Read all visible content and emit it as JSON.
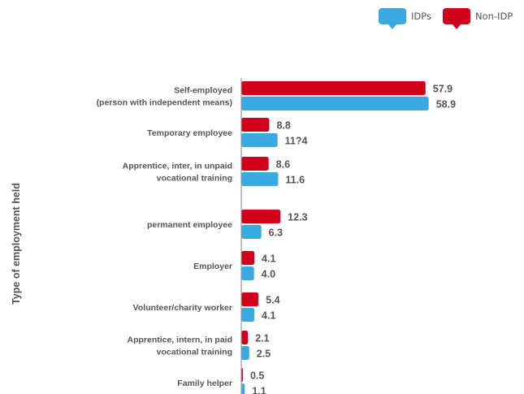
{
  "legend": {
    "idp_label": "IDPs",
    "non_idp_label": "Non-IDP"
  },
  "colors": {
    "idp": "#3aa9df",
    "non_idp": "#d0021b",
    "text": "#555555",
    "axis": "#999999"
  },
  "chart_data": {
    "type": "bar",
    "orientation": "horizontal",
    "ylabel": "Type of employment held",
    "xlabel": "",
    "categories": [
      [
        "Self-employed",
        "(person with independent means)"
      ],
      [
        "Temporary employee"
      ],
      [
        "Apprentice, inter, in unpaid",
        "vocational training"
      ],
      [
        "permanent employee"
      ],
      [
        "Employer"
      ],
      [
        "Volunteer/charity worker"
      ],
      [
        "Apprentice, intern, in paid",
        "vocational training"
      ],
      [
        "Family helper"
      ]
    ],
    "series": [
      {
        "name": "Non-IDP",
        "values": [
          57.9,
          8.8,
          8.6,
          12.3,
          4.1,
          5.4,
          2.1,
          0.5
        ],
        "labels": [
          "57.9",
          "8.8",
          "8.6",
          "12.3",
          "4.1",
          "5.4",
          "2.1",
          "0.5"
        ]
      },
      {
        "name": "IDPs",
        "values": [
          58.9,
          11.4,
          11.6,
          6.3,
          4.0,
          4.1,
          2.5,
          1.1
        ],
        "labels": [
          "58.9",
          "11?4",
          "11.6",
          "6.3",
          "4.0",
          "4.1",
          "2.5",
          "1.1"
        ]
      }
    ],
    "xlim": [
      0,
      60
    ],
    "grid": false,
    "legend_position": "top-right"
  }
}
